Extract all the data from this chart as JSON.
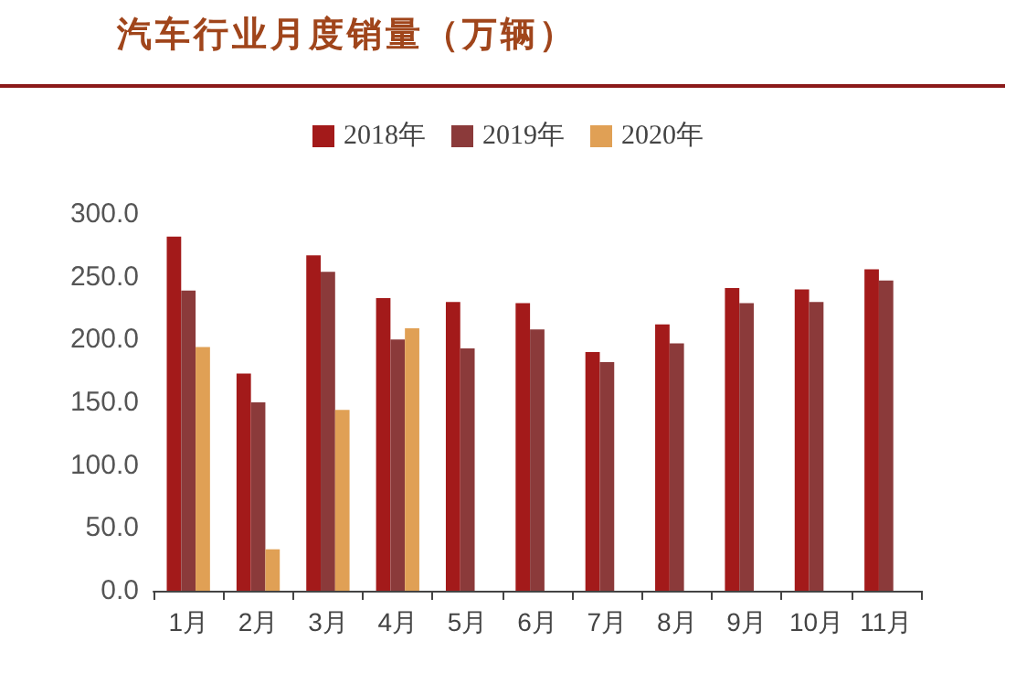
{
  "chart_data": {
    "type": "bar",
    "title": "汽车行业月度销量（万辆）",
    "categories": [
      "1月",
      "2月",
      "3月",
      "4月",
      "5月",
      "6月",
      "7月",
      "8月",
      "9月",
      "10月",
      "11月"
    ],
    "series": [
      {
        "name": "2018年",
        "color": "#a31a1a",
        "values": [
          282,
          173,
          267,
          233,
          230,
          229,
          190,
          212,
          241,
          240,
          256
        ]
      },
      {
        "name": "2019年",
        "color": "#8b3a3a",
        "values": [
          239,
          150,
          254,
          200,
          193,
          208,
          182,
          197,
          229,
          230,
          247
        ]
      },
      {
        "name": "2020年",
        "color": "#e0a055",
        "values": [
          194,
          33,
          144,
          209,
          null,
          null,
          null,
          null,
          null,
          null,
          null
        ]
      }
    ],
    "ylim": [
      0,
      300
    ],
    "yticks": [
      {
        "value": 0,
        "label": "0.0"
      },
      {
        "value": 50,
        "label": "50.0"
      },
      {
        "value": 100,
        "label": "100.0"
      },
      {
        "value": 150,
        "label": "150.0"
      },
      {
        "value": 200,
        "label": "200.0"
      },
      {
        "value": 250,
        "label": "250.0"
      },
      {
        "value": 300,
        "label": "300.0"
      }
    ],
    "grid": false,
    "legend": "top"
  }
}
